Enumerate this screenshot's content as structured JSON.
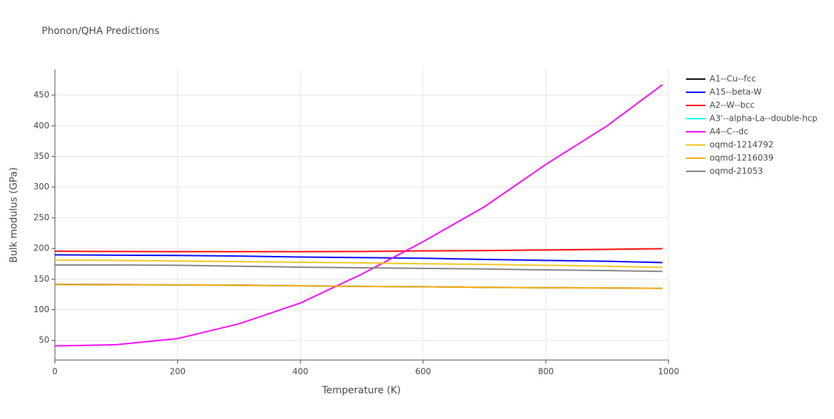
{
  "chart_data": {
    "type": "line",
    "title": "Phonon/QHA Predictions",
    "x_label": "Temperature (K)",
    "y_label": "Bulk modulus (GPa)",
    "x": [
      0,
      100,
      200,
      300,
      400,
      500,
      600,
      700,
      800,
      900,
      990
    ],
    "series": [
      {
        "name": "A1--Cu--fcc",
        "color": "#000000",
        "values": [
          141.5,
          141,
          140.5,
          140,
          139,
          138,
          137.5,
          136.5,
          136,
          135.5,
          135
        ]
      },
      {
        "name": "A15--beta-W",
        "color": "#0000ff",
        "values": [
          189.5,
          189,
          188.5,
          187.5,
          186,
          185,
          184,
          182,
          180.5,
          179,
          177
        ]
      },
      {
        "name": "A2--W--bcc",
        "color": "#ff0000",
        "values": [
          195.5,
          195,
          194.8,
          194.8,
          194.8,
          195,
          196,
          196.5,
          197.5,
          198.5,
          199.5
        ]
      },
      {
        "name": "A3'--alpha-La--double-hcp",
        "color": "#00ffff",
        "values": [
          141,
          140.8,
          140.5,
          139.8,
          139,
          138,
          137.5,
          136.5,
          136,
          135.5,
          135
        ]
      },
      {
        "name": "A4--C--dc",
        "color": "#ff00ff",
        "values": [
          41,
          43,
          53,
          77,
          111,
          158,
          211,
          268,
          337,
          400,
          467
        ]
      },
      {
        "name": "oqmd-1214792",
        "color": "#f0c419",
        "values": [
          181,
          180.5,
          179.5,
          178.5,
          177.5,
          176.5,
          175,
          174,
          172.5,
          171,
          169
        ]
      },
      {
        "name": "oqmd-1216039",
        "color": "#ffa500",
        "values": [
          141,
          140.8,
          140.5,
          139.8,
          139,
          138,
          137.5,
          136.5,
          136,
          135.5,
          135
        ]
      },
      {
        "name": "oqmd-21053",
        "color": "#808080",
        "values": [
          173,
          173,
          172.5,
          171,
          169.5,
          168.5,
          167.5,
          166.5,
          165,
          164,
          162.5
        ]
      }
    ],
    "xlim": [
      0,
      1000
    ],
    "xticks": [
      0,
      200,
      400,
      600,
      800,
      1000
    ],
    "ylim": [
      18,
      492
    ],
    "yticks": [
      50,
      100,
      150,
      200,
      250,
      300,
      350,
      400,
      450
    ],
    "grid": true,
    "legend": "right"
  }
}
